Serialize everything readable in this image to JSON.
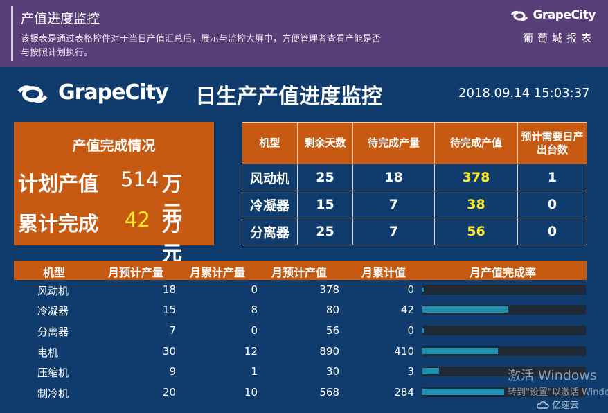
{
  "banner": {
    "title": "产值进度监控",
    "description": "该报表是通过表格控件对于当日产值汇总后，展示与监控大屏中，方便管理者查看产能是否与按照计划执行。",
    "brand_logo_text": "GrapeCity",
    "brand_sub": "葡萄城报表"
  },
  "header": {
    "logo_text": "GrapeCity",
    "title": "日生产产值进度监控",
    "datetime": "2018.09.14 15:03:37"
  },
  "summary": {
    "title": "产值完成情况",
    "plan_label": "计划产值",
    "plan_value": "514",
    "done_label": "累计完成",
    "done_value": "42",
    "unit": "万元"
  },
  "pending_table": {
    "headers": [
      "机型",
      "剩余天数",
      "待完成产量",
      "待完成产值",
      "预计需要日产出台数"
    ],
    "rows": [
      [
        "风动机",
        "25",
        "18",
        "378",
        "1"
      ],
      [
        "冷凝器",
        "15",
        "7",
        "38",
        "0"
      ],
      [
        "分离器",
        "25",
        "7",
        "56",
        "0"
      ]
    ]
  },
  "monthly_table": {
    "headers": [
      "机型",
      "月预计产量",
      "月累计产量",
      "月预计产值",
      "月累计值",
      "月产值完成率"
    ],
    "rows": [
      {
        "name": "风动机",
        "plan_qty": "18",
        "done_qty": "0",
        "plan_val": "378",
        "done_val": "0",
        "rate": 0.0
      },
      {
        "name": "冷凝器",
        "plan_qty": "15",
        "done_qty": "8",
        "plan_val": "80",
        "done_val": "42",
        "rate": 0.525
      },
      {
        "name": "分离器",
        "plan_qty": "7",
        "done_qty": "0",
        "plan_val": "56",
        "done_val": "0",
        "rate": 0.0
      },
      {
        "name": "电机",
        "plan_qty": "30",
        "done_qty": "12",
        "plan_val": "890",
        "done_val": "410",
        "rate": 0.4607
      },
      {
        "name": "压缩机",
        "plan_qty": "9",
        "done_qty": "1",
        "plan_val": "30",
        "done_val": "3",
        "rate": 0.1
      },
      {
        "name": "制冷机",
        "plan_qty": "20",
        "done_qty": "10",
        "plan_val": "568",
        "done_val": "284",
        "rate": 0.5
      }
    ]
  },
  "watermark": {
    "line1": "激活 Windows",
    "line2": "转到\"设置\"以激活 Windows",
    "site": "亿速云"
  },
  "colors": {
    "background": "#0f3c6c",
    "banner": "#5a3e78",
    "accent_orange": "#c75a12",
    "highlight_yellow": "#ffec21",
    "progress_fill": "#1f8fb0"
  }
}
